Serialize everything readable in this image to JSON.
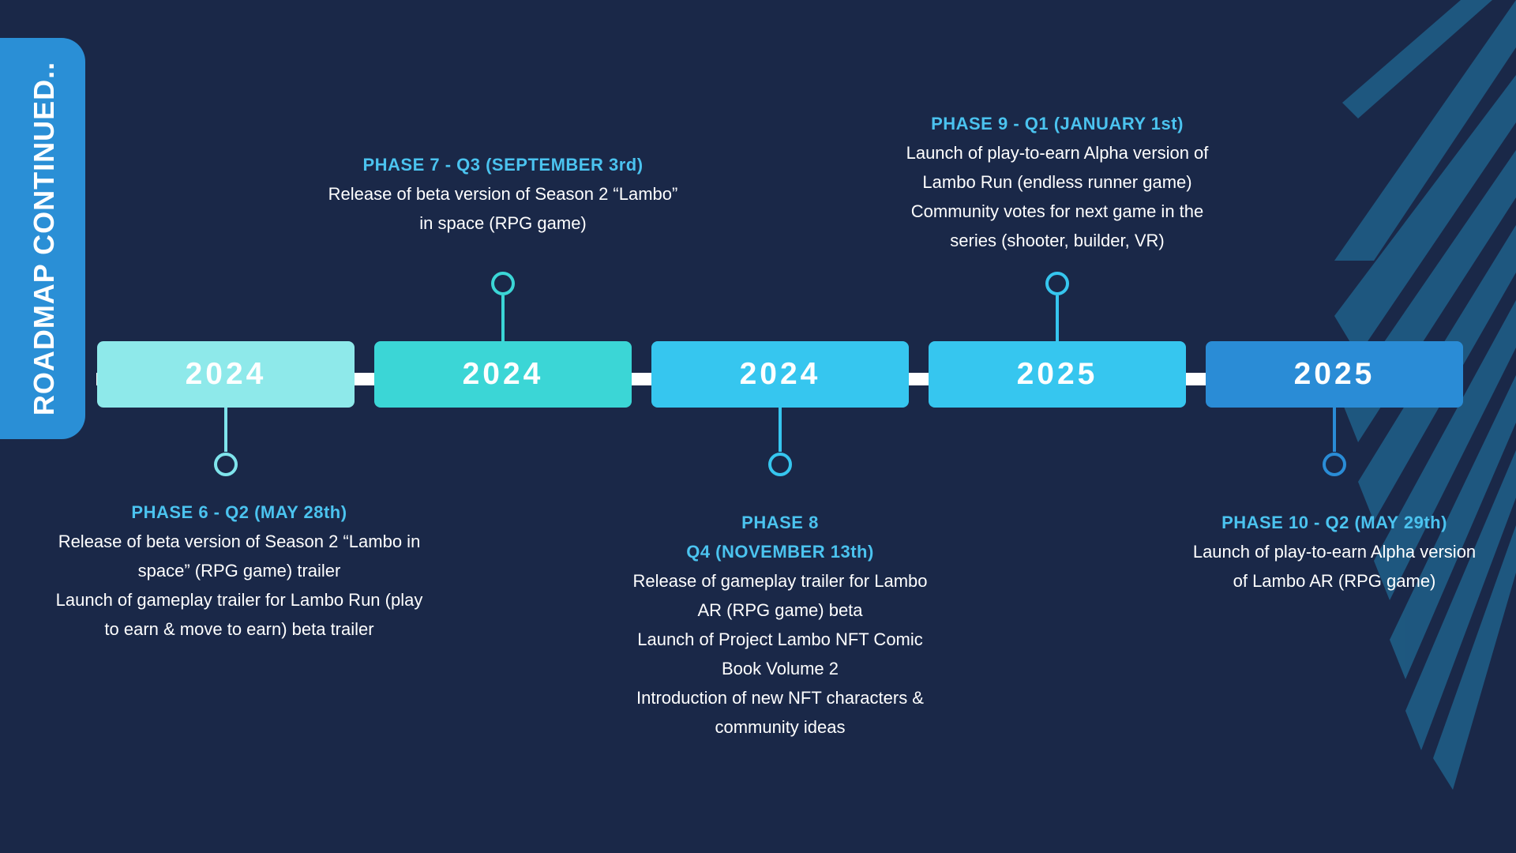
{
  "sidebar": {
    "title": "ROADMAP CONTINUED.."
  },
  "colors": {
    "background": "#1a2848",
    "tab": "#2a8fd6",
    "accent_text": "#4bc3ef",
    "year_boxes": [
      "#8ee9ea",
      "#3bd6d6",
      "#36c6ef",
      "#36c6ef",
      "#2a8cd6"
    ],
    "stripes": "#1f5d85"
  },
  "timeline": {
    "years": [
      "2024",
      "2024",
      "2024",
      "2025",
      "2025"
    ]
  },
  "phases": [
    {
      "title_lines": [
        "PHASE 6 - Q2 (MAY 28th)"
      ],
      "lines": [
        "Release of beta version of Season 2 “Lambo in",
        "space” (RPG game) trailer",
        "Launch of gameplay trailer for Lambo Run (play",
        "to earn & move to earn) beta trailer"
      ]
    },
    {
      "title_lines": [
        "PHASE 7 - Q3 (SEPTEMBER 3rd)"
      ],
      "lines": [
        "Release of beta version of Season 2 “Lambo”",
        "in space (RPG game)"
      ]
    },
    {
      "title_lines": [
        "PHASE 8",
        "Q4 (NOVEMBER 13th)"
      ],
      "lines": [
        "Release of gameplay trailer for Lambo",
        "AR (RPG game) beta",
        "Launch of Project Lambo NFT Comic",
        "Book Volume 2",
        "Introduction of new NFT characters &",
        "community ideas"
      ]
    },
    {
      "title_lines": [
        "PHASE 9 - Q1 (JANUARY 1st)"
      ],
      "lines": [
        "Launch of play-to-earn Alpha version of",
        "Lambo Run (endless runner game)",
        "Community votes for next game in the",
        "series (shooter, builder, VR)"
      ]
    },
    {
      "title_lines": [
        "PHASE 10 - Q2 (MAY 29th)"
      ],
      "lines": [
        "Launch of play-to-earn Alpha version",
        "of Lambo AR (RPG game)"
      ]
    }
  ]
}
